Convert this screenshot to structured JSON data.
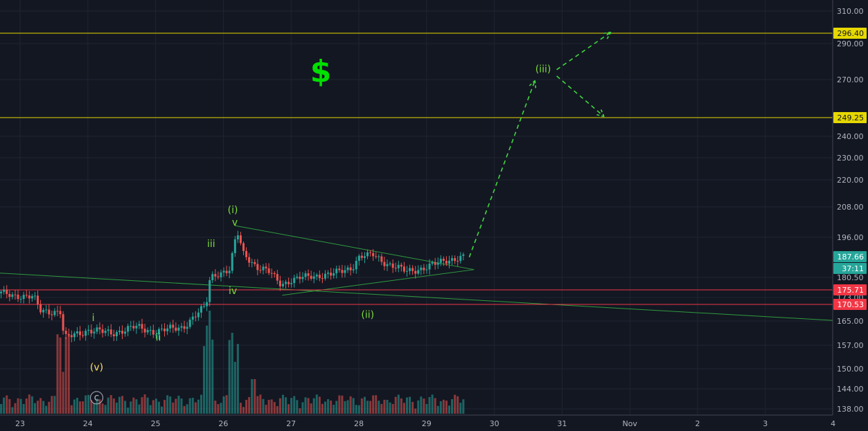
{
  "chart_data": {
    "type": "candlestick",
    "symbol_glyph": "$",
    "x_ticks": [
      "23",
      "24",
      "25",
      "26",
      "27",
      "28",
      "29",
      "30",
      "31",
      "Nov",
      "2",
      "3",
      "4"
    ],
    "y_ticks": [
      "310.00",
      "290.00",
      "270.00",
      "249.25",
      "240.00",
      "230.00",
      "220.00",
      "208.00",
      "196.00",
      "187.66",
      "180.50",
      "175.71",
      "173.00",
      "170.53",
      "165.00",
      "157.00",
      "150.00",
      "144.00",
      "138.00"
    ],
    "y_tick_values": [
      310,
      290,
      270,
      240,
      230,
      220,
      208,
      196,
      180.5,
      173,
      165,
      157,
      150,
      144,
      138
    ],
    "horizontal_levels": [
      {
        "value": 296.4,
        "label": "296.40",
        "color": "#e6d800"
      },
      {
        "value": 249.25,
        "label": "249.25",
        "color": "#e6d800"
      },
      {
        "value": 175.71,
        "label": "175.71",
        "color": "#f23645"
      },
      {
        "value": 170.53,
        "label": "170.53",
        "color": "#f23645"
      }
    ],
    "last_price": {
      "value": 187.66,
      "label": "187.66",
      "countdown": "37:11",
      "color": "#26a69a"
    },
    "wave_labels": [
      {
        "text": "(i)",
        "color": "#7ddc3a",
        "day": 26.14,
        "price": 205.5
      },
      {
        "text": "v",
        "color": "#7ddc3a",
        "day": 26.17,
        "price": 200.6
      },
      {
        "text": "iii",
        "color": "#7ddc3a",
        "day": 25.82,
        "price": 191.9
      },
      {
        "text": "iv",
        "color": "#7ddc3a",
        "day": 26.14,
        "price": 174.2
      },
      {
        "text": "i",
        "color": "#7ddc3a",
        "day": 24.08,
        "price": 165.0
      },
      {
        "text": "ii",
        "color": "#7ddc3a",
        "day": 25.04,
        "price": 158.5
      },
      {
        "text": "(ii)",
        "color": "#7ddc3a",
        "day": 28.13,
        "price": 166.0
      },
      {
        "text": "(v)",
        "color": "#ffe066",
        "day": 24.13,
        "price": 149.5
      },
      {
        "text": "c",
        "color": "#b2b5be",
        "day": 24.13,
        "price": 140.5
      },
      {
        "text": "(iii)",
        "color": "#7ddc3a",
        "day": 30.72,
        "price": 274.0
      }
    ],
    "volume_color_up": "#26a69a",
    "volume_color_down": "#ef5350"
  }
}
